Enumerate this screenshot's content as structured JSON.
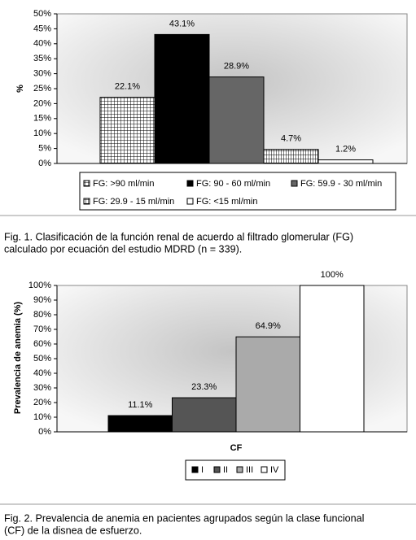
{
  "chart_data": [
    {
      "type": "bar",
      "ylabel": "%",
      "ylim": [
        0,
        50
      ],
      "yticks": [
        {
          "value": 0,
          "label": "0%"
        },
        {
          "value": 5,
          "label": "5%"
        },
        {
          "value": 10,
          "label": "10%"
        },
        {
          "value": 15,
          "label": "15%"
        },
        {
          "value": 20,
          "label": "20%"
        },
        {
          "value": 25,
          "label": "25%"
        },
        {
          "value": 30,
          "label": "30%"
        },
        {
          "value": 35,
          "label": "35%"
        },
        {
          "value": 40,
          "label": "40%"
        },
        {
          "value": 45,
          "label": "45%"
        },
        {
          "value": 50,
          "label": "50%"
        }
      ],
      "grid": false,
      "legend": "bottom",
      "series": [
        {
          "name": "FG: >90 ml/min",
          "color": "#ffffff",
          "pattern": "grid",
          "values": [
            22.1
          ],
          "value_labels": [
            "22.1%"
          ]
        },
        {
          "name": "FG: 90 - 60 ml/min",
          "color": "#000000",
          "values": [
            43.1
          ],
          "value_labels": [
            "43.1%"
          ]
        },
        {
          "name": "FG: 59.9 - 30 ml/min",
          "color": "#666666",
          "values": [
            28.9
          ],
          "value_labels": [
            "28.9%"
          ]
        },
        {
          "name": "FG: 29.9 - 15 ml/min",
          "color": "#ffffff",
          "pattern": "vstripe",
          "values": [
            4.7
          ],
          "value_labels": [
            "4.7%"
          ]
        },
        {
          "name": "FG: <15 ml/min",
          "color": "#ffffff",
          "values": [
            1.2
          ],
          "value_labels": [
            "1.2%"
          ]
        }
      ],
      "caption": [
        "Fig. 1. Clasificación de la función renal de acuerdo al filtrado glomerular (FG)",
        "calculado por ecuación del estudio MDRD (n = 339)."
      ]
    },
    {
      "type": "bar",
      "xlabel": "CF",
      "ylabel": "Prevalencia de anemia (%)",
      "ylim": [
        0,
        100
      ],
      "yticks": [
        {
          "value": 0,
          "label": "0%"
        },
        {
          "value": 10,
          "label": "10%"
        },
        {
          "value": 20,
          "label": "20%"
        },
        {
          "value": 30,
          "label": "30%"
        },
        {
          "value": 40,
          "label": "40%"
        },
        {
          "value": 50,
          "label": "50%"
        },
        {
          "value": 60,
          "label": "60%"
        },
        {
          "value": 70,
          "label": "70%"
        },
        {
          "value": 80,
          "label": "80%"
        },
        {
          "value": 90,
          "label": "90%"
        },
        {
          "value": 100,
          "label": "100%"
        }
      ],
      "grid": false,
      "legend": "bottom",
      "series": [
        {
          "name": "I",
          "color": "#000000",
          "values": [
            11.1
          ],
          "value_labels": [
            "11.1%"
          ]
        },
        {
          "name": "II",
          "color": "#555555",
          "values": [
            23.3
          ],
          "value_labels": [
            "23.3%"
          ]
        },
        {
          "name": "III",
          "color": "#aaaaaa",
          "values": [
            64.9
          ],
          "value_labels": [
            "64.9%"
          ]
        },
        {
          "name": "IV",
          "color": "#ffffff",
          "values": [
            100
          ],
          "value_labels": [
            "100%"
          ]
        }
      ],
      "caption": [
        "Fig. 2. Prevalencia de anemia en pacientes agrupados según la clase funcional",
        "(CF) de la disnea de esfuerzo."
      ]
    }
  ]
}
